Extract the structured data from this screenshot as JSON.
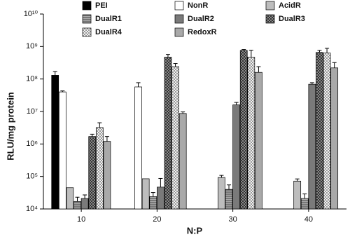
{
  "chart_data": {
    "type": "bar",
    "log_scale": true,
    "y_label": "RLU/mg protein",
    "x_label": "N:P",
    "categories": [
      "10",
      "20",
      "30",
      "40"
    ],
    "ylim": [
      10000,
      10000000000
    ],
    "yticks": [
      {
        "value": 10000,
        "label": "10⁴"
      },
      {
        "value": 100000,
        "label": "10⁵"
      },
      {
        "value": 1000000,
        "label": "10⁶"
      },
      {
        "value": 10000000,
        "label": "10⁷"
      },
      {
        "value": 100000000,
        "label": "10⁸"
      },
      {
        "value": 1000000000,
        "label": "10⁹"
      },
      {
        "value": 10000000000,
        "label": "10¹⁰"
      }
    ],
    "grid": false,
    "series": [
      {
        "name": "PEI",
        "color": "#000000",
        "pattern": "solid",
        "values": [
          130000000,
          null,
          null,
          null
        ],
        "errors": [
          40000000,
          null,
          null,
          null
        ]
      },
      {
        "name": "NonR",
        "color": "#ffffff",
        "pattern": "solid",
        "values": [
          40000000,
          57000000,
          null,
          null
        ],
        "errors": [
          3000000,
          20000000,
          null,
          null
        ]
      },
      {
        "name": "AcidR",
        "color": "#bdbdbd",
        "pattern": "solid",
        "values": [
          45000,
          85000,
          93000,
          72000
        ],
        "errors": [
          null,
          null,
          15000,
          12000
        ]
      },
      {
        "name": "DualR1",
        "color": "#8a8a8a",
        "pattern": "hlines",
        "values": [
          17000,
          24000,
          40000,
          21000
        ],
        "errors": [
          6000,
          8000,
          15000,
          8000
        ]
      },
      {
        "name": "DualR2",
        "color": "#7a7a7a",
        "pattern": "solid",
        "values": [
          21000,
          47000,
          16000000,
          69000000
        ],
        "errors": [
          6000,
          40000,
          3000000,
          8000000
        ]
      },
      {
        "name": "DualR3",
        "color": "#555555",
        "pattern": "checker",
        "values": [
          1700000,
          470000000,
          760000000,
          660000000
        ],
        "errors": [
          300000,
          100000000,
          50000000,
          100000000
        ]
      },
      {
        "name": "DualR4",
        "color": "#d8d8d8",
        "pattern": "dots",
        "values": [
          3200000,
          240000000,
          470000000,
          630000000
        ],
        "errors": [
          1300000,
          60000000,
          300000000,
          250000000
        ]
      },
      {
        "name": "RedoxR",
        "color": "#a9a9a9",
        "pattern": "solid",
        "values": [
          1200000,
          8700000,
          160000000,
          220000000
        ],
        "errors": [
          500000,
          1000000,
          80000000,
          100000000
        ]
      }
    ]
  }
}
